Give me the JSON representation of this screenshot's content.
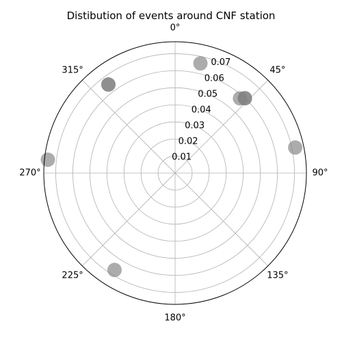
{
  "chart_data": {
    "type": "scatter",
    "projection": "polar",
    "title": "Distibution of events around CNF station",
    "theta_direction": "clockwise",
    "theta_zero_location": "north",
    "theta_ticks": [
      {
        "deg": 0,
        "label": "0°"
      },
      {
        "deg": 45,
        "label": "45°"
      },
      {
        "deg": 90,
        "label": "90°"
      },
      {
        "deg": 135,
        "label": "135°"
      },
      {
        "deg": 180,
        "label": "180°"
      },
      {
        "deg": 225,
        "label": "225°"
      },
      {
        "deg": 270,
        "label": "270°"
      },
      {
        "deg": 315,
        "label": "315°"
      }
    ],
    "r_ticks": [
      {
        "value": 0.01,
        "label": "0.01"
      },
      {
        "value": 0.02,
        "label": "0.02"
      },
      {
        "value": 0.03,
        "label": "0.03"
      },
      {
        "value": 0.04,
        "label": "0.04"
      },
      {
        "value": 0.05,
        "label": "0.05"
      },
      {
        "value": 0.06,
        "label": "0.06"
      },
      {
        "value": 0.07,
        "label": "0.07"
      }
    ],
    "rlim": [
      0,
      0.077
    ],
    "grid": true,
    "marker_color": "#808080",
    "marker_alpha": 0.65,
    "points": [
      {
        "theta": 13,
        "r": 0.066
      },
      {
        "theta": 41,
        "r": 0.058
      },
      {
        "theta": 43,
        "r": 0.06
      },
      {
        "theta": 43,
        "r": 0.06
      },
      {
        "theta": 78,
        "r": 0.072
      },
      {
        "theta": 212,
        "r": 0.067
      },
      {
        "theta": 323,
        "r": 0.065
      },
      {
        "theta": 323,
        "r": 0.065
      },
      {
        "theta": 276,
        "r": 0.075
      }
    ]
  }
}
